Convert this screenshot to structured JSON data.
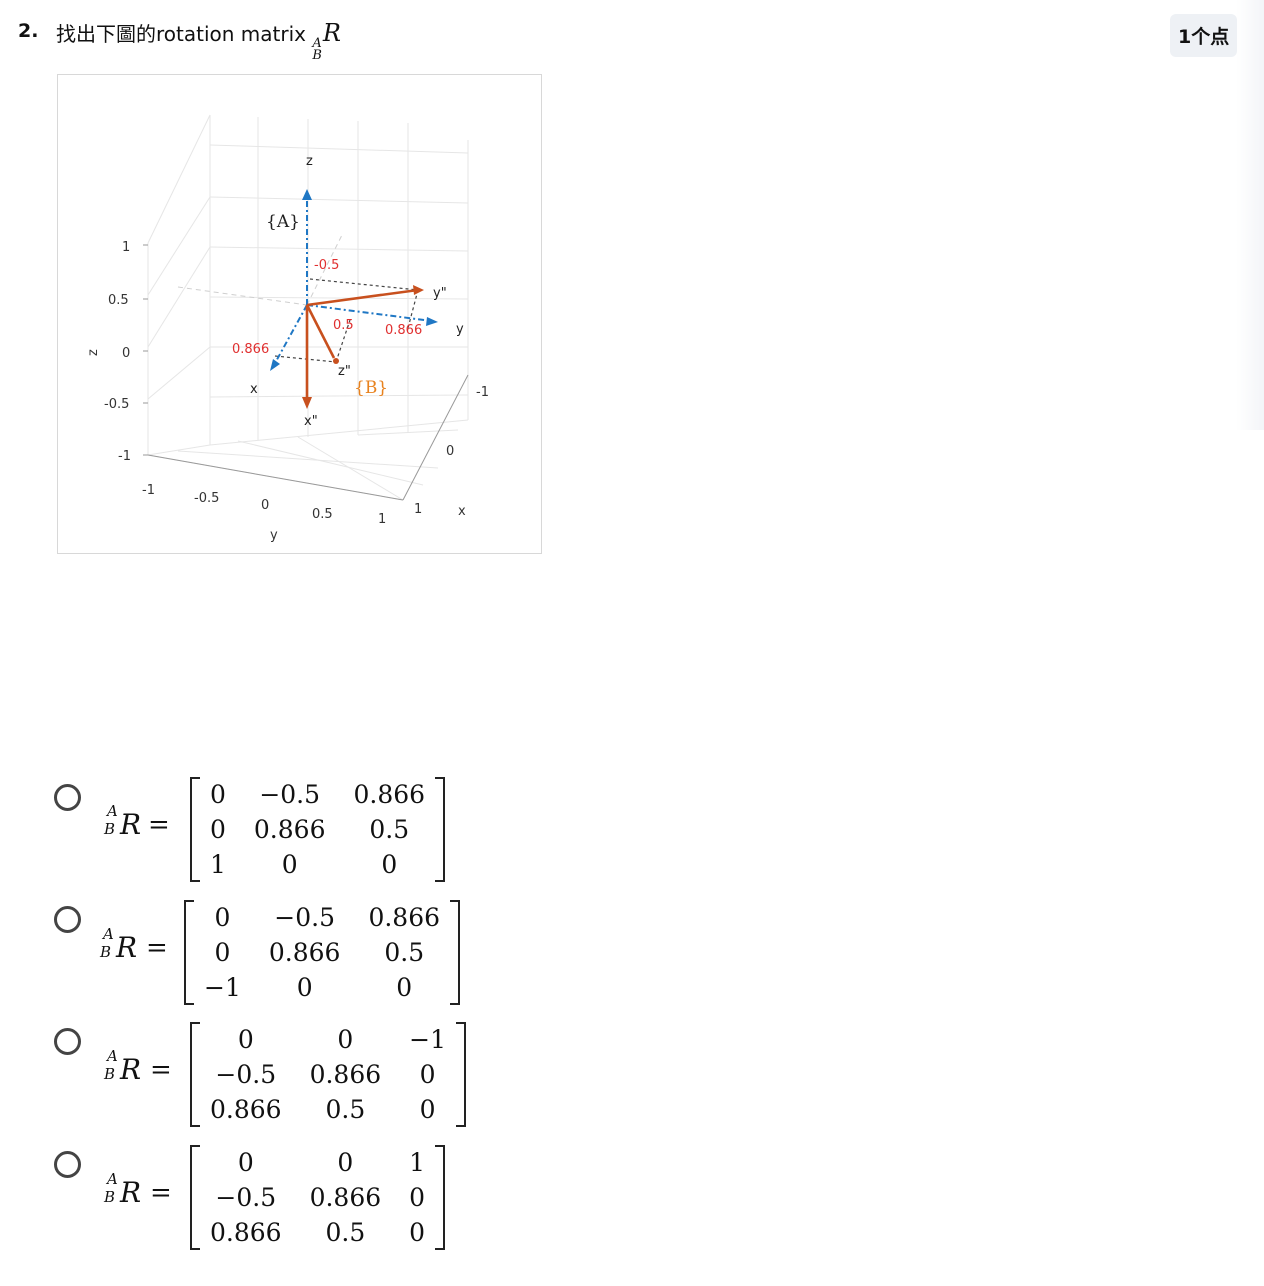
{
  "question": {
    "number": "2.",
    "text": "找出下圖的rotation matrix",
    "sup": "A",
    "sub": "B",
    "symbol": "R",
    "points": "1个点"
  },
  "figure": {
    "z_axis_title": "z",
    "y_axis_title": "y",
    "z_ticks": [
      "1",
      "0.5",
      "0",
      "-0.5",
      "-1"
    ],
    "y_ticks": [
      "-1",
      "-0.5",
      "0",
      "0.5",
      "1"
    ],
    "x_ticks": [
      "-1",
      "0",
      "1"
    ],
    "x_axis_title": "x",
    "frame_A": "{A}",
    "frame_B": "{B}",
    "axis_z": "z",
    "axis_y": "y",
    "axis_x": "x",
    "axis_x2": "x\"",
    "axis_y2": "y\"",
    "axis_z2": "z\"",
    "val_neg05": "-0.5",
    "val_05": "0.5",
    "val_0866_right": "0.866",
    "val_0866_left": "0.866",
    "colors": {
      "frameA": "#1f77c4",
      "frameB": "#c8501e",
      "label_red": "#e03030",
      "label_orange": "#e8821e"
    }
  },
  "options": [
    {
      "lhs": "R",
      "sup": "A",
      "sub": "B",
      "eq": "=",
      "rows": [
        [
          "0",
          "−0.5",
          "0.866"
        ],
        [
          "0",
          "0.866",
          "0.5"
        ],
        [
          "1",
          "0",
          "0"
        ]
      ]
    },
    {
      "lhs": "R",
      "sup": "A",
      "sub": "B",
      "eq": "=",
      "rows": [
        [
          "0",
          "−0.5",
          "0.866"
        ],
        [
          "0",
          "0.866",
          "0.5"
        ],
        [
          "−1",
          "0",
          "0"
        ]
      ]
    },
    {
      "lhs": "R",
      "sup": "A",
      "sub": "B",
      "eq": "=",
      "rows": [
        [
          "0",
          "0",
          "−1"
        ],
        [
          "−0.5",
          "0.866",
          "0"
        ],
        [
          "0.866",
          "0.5",
          "0"
        ]
      ]
    },
    {
      "lhs": "R",
      "sup": "A",
      "sub": "B",
      "eq": "=",
      "rows": [
        [
          "0",
          "0",
          "1"
        ],
        [
          "−0.5",
          "0.866",
          "0"
        ],
        [
          "0.866",
          "0.5",
          "0"
        ]
      ]
    }
  ]
}
